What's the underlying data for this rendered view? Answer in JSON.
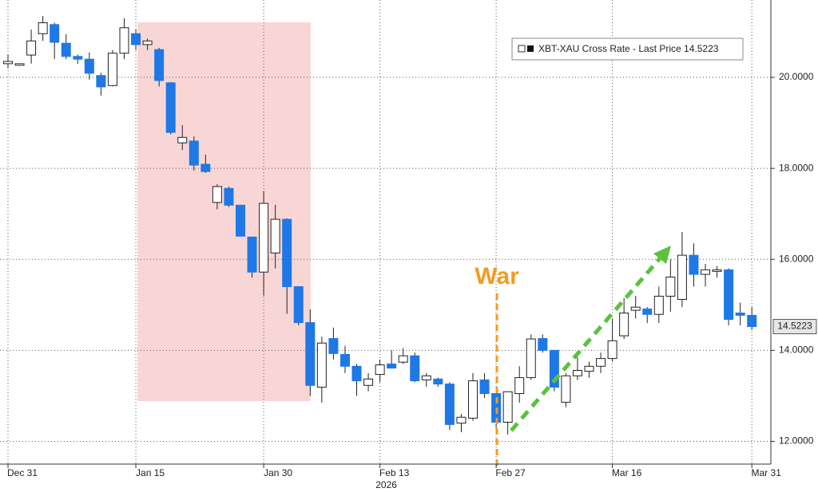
{
  "chart_data": {
    "type": "candlestick",
    "legend": "XBT-XAU Cross Rate - Last Price 14.5223",
    "year_label": "2026",
    "annotation": "War",
    "categories": [
      "Dec 31",
      null,
      null,
      null,
      null,
      null,
      null,
      null,
      null,
      null,
      null,
      "Jan 15",
      null,
      null,
      null,
      null,
      null,
      null,
      null,
      null,
      null,
      null,
      "Jan 30",
      null,
      null,
      null,
      null,
      null,
      null,
      null,
      null,
      null,
      "Feb 13",
      null,
      null,
      null,
      null,
      null,
      null,
      null,
      null,
      null,
      "Feb 27",
      null,
      null,
      null,
      null,
      null,
      null,
      null,
      null,
      null,
      "Mar 16",
      null,
      null,
      null,
      null,
      null,
      null,
      null,
      null,
      null,
      null,
      null,
      "Mar 31"
    ],
    "open": [
      20.3,
      20.3,
      20.49,
      20.96,
      21.16,
      20.75,
      20.46,
      20.4,
      20.04,
      19.82,
      20.53,
      20.96,
      20.72,
      20.61,
      19.88,
      18.56,
      18.6,
      18.09,
      17.25,
      17.56,
      17.19,
      16.49,
      15.72,
      16.14,
      16.88,
      15.4,
      14.61,
      13.19,
      14.26,
      13.91,
      13.65,
      13.23,
      13.47,
      13.7,
      13.74,
      13.88,
      13.35,
      13.37,
      13.26,
      12.4,
      12.51,
      13.35,
      13.05,
      12.42,
      13.05,
      13.4,
      14.26,
      14.0,
      12.86,
      13.44,
      13.54,
      13.65,
      13.82,
      14.32,
      14.88,
      14.91,
      14.79,
      15.19,
      15.12,
      16.09,
      15.67,
      15.74,
      15.77,
      14.82,
      14.77
    ],
    "high": [
      20.5,
      20.3,
      21.05,
      21.35,
      21.2,
      20.95,
      20.5,
      20.55,
      20.1,
      20.6,
      21.3,
      21.05,
      20.85,
      20.65,
      19.9,
      18.95,
      18.7,
      18.3,
      17.65,
      17.6,
      17.2,
      16.5,
      17.5,
      17.2,
      16.9,
      15.4,
      14.9,
      14.3,
      14.5,
      14.1,
      13.7,
      13.5,
      13.8,
      14.0,
      14.05,
      13.95,
      13.5,
      13.4,
      13.3,
      12.6,
      13.5,
      13.5,
      13.2,
      13.1,
      13.65,
      14.35,
      14.35,
      14.0,
      13.5,
      13.85,
      13.75,
      13.95,
      14.7,
      15.15,
      15.2,
      14.95,
      15.4,
      16.0,
      16.6,
      16.35,
      15.9,
      15.85,
      15.8,
      15.05,
      14.95
    ],
    "low": [
      20.2,
      20.3,
      20.3,
      20.8,
      20.4,
      20.4,
      20.3,
      19.95,
      19.6,
      19.8,
      20.4,
      20.6,
      20.6,
      19.8,
      18.75,
      18.4,
      17.95,
      17.9,
      17.1,
      17.15,
      16.5,
      15.6,
      15.2,
      15.8,
      14.8,
      14.55,
      13.0,
      12.85,
      13.8,
      13.5,
      13.0,
      13.1,
      13.3,
      13.6,
      13.7,
      13.3,
      13.2,
      13.2,
      12.25,
      12.2,
      12.45,
      12.95,
      12.3,
      12.15,
      12.85,
      13.35,
      13.95,
      13.1,
      12.75,
      13.35,
      13.4,
      13.5,
      13.75,
      14.25,
      14.7,
      14.6,
      14.6,
      14.85,
      14.95,
      15.4,
      15.4,
      15.6,
      14.55,
      14.55,
      14.45
    ],
    "close": [
      20.35,
      20.3,
      20.8,
      21.2,
      20.77,
      20.46,
      20.4,
      20.09,
      19.79,
      20.53,
      21.09,
      20.72,
      20.8,
      19.93,
      18.79,
      18.68,
      18.07,
      17.93,
      17.6,
      17.19,
      16.51,
      15.72,
      17.23,
      16.88,
      15.4,
      14.61,
      13.23,
      14.16,
      13.93,
      13.65,
      13.33,
      13.37,
      13.68,
      13.61,
      13.88,
      13.33,
      13.44,
      13.26,
      12.37,
      12.53,
      13.33,
      13.05,
      12.42,
      13.09,
      13.4,
      14.25,
      14.0,
      13.19,
      13.44,
      13.56,
      13.65,
      13.82,
      14.21,
      14.82,
      14.95,
      14.79,
      15.19,
      15.61,
      16.09,
      15.67,
      15.77,
      15.77,
      14.68,
      14.77,
      14.5223
    ],
    "up_color": "#ffffff",
    "down_color": "#1e78e6",
    "ylim": [
      11.5,
      21.7
    ],
    "yticks": [
      {
        "value": 12,
        "label": "12.0000"
      },
      {
        "value": 14,
        "label": "14.0000"
      },
      {
        "value": 16,
        "label": "16.0000"
      },
      {
        "value": 18,
        "label": "18.0000"
      },
      {
        "value": 20,
        "label": "20.0000"
      }
    ],
    "grid": true
  }
}
